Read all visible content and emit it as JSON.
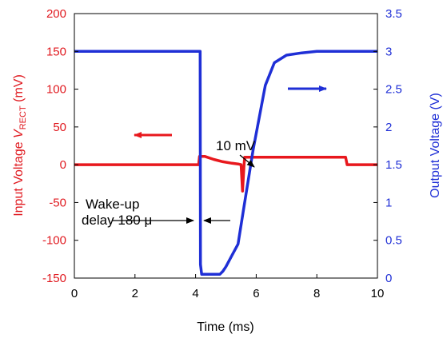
{
  "chart_data": {
    "type": "line",
    "xlabel": "Time (ms)",
    "ylabel_left": {
      "prefix": "Input Voltage ",
      "var": "V",
      "sub": "RECT",
      "suffix": " (mV)"
    },
    "ylabel_right": "Output Voltage (V)",
    "xlim": [
      0,
      10
    ],
    "ylim_left": [
      -150,
      200
    ],
    "ylim_right": [
      0,
      3.5
    ],
    "x_ticks": [
      "0",
      "2",
      "4",
      "6",
      "8",
      "10"
    ],
    "y_left_ticks": [
      "-150",
      "-100",
      "-50",
      "0",
      "50",
      "100",
      "150",
      "200"
    ],
    "y_right_ticks": [
      "0",
      "0.5",
      "1",
      "1.5",
      "2",
      "2.5",
      "3",
      "3.5"
    ],
    "grid": false,
    "colors": {
      "input": "#e8181d",
      "output": "#1f2fd6",
      "axis": "#000000"
    },
    "series": [
      {
        "axis": "left",
        "color": "#e8181d",
        "x": [
          0,
          4.1,
          4.13,
          4.3,
          4.6,
          4.9,
          5.2,
          5.4,
          5.5,
          5.55,
          5.6,
          5.62,
          5.65,
          5.68,
          6.0,
          7.0,
          8.0,
          8.95,
          9.0,
          10.0
        ],
        "y": [
          0,
          0,
          11,
          11,
          7,
          4,
          2,
          1,
          0,
          -35,
          0,
          10,
          10,
          10,
          10,
          10,
          10,
          10,
          0,
          0
        ]
      },
      {
        "axis": "right",
        "color": "#1f2fd6",
        "x": [
          0,
          4.15,
          4.16,
          4.2,
          4.5,
          4.8,
          4.9,
          5.0,
          5.2,
          5.4,
          5.6,
          5.9,
          6.3,
          6.6,
          7.0,
          7.5,
          8.0,
          9.0,
          10.0
        ],
        "y": [
          3.0,
          3.0,
          0.18,
          0.05,
          0.05,
          0.05,
          0.09,
          0.15,
          0.3,
          0.45,
          0.95,
          1.7,
          2.55,
          2.85,
          2.95,
          2.98,
          3.0,
          3.0,
          3.0
        ]
      }
    ],
    "annotations": {
      "peak_label": "10 mV",
      "wake_line1": "Wake-up",
      "wake_line2": "delay 180 μ"
    }
  }
}
